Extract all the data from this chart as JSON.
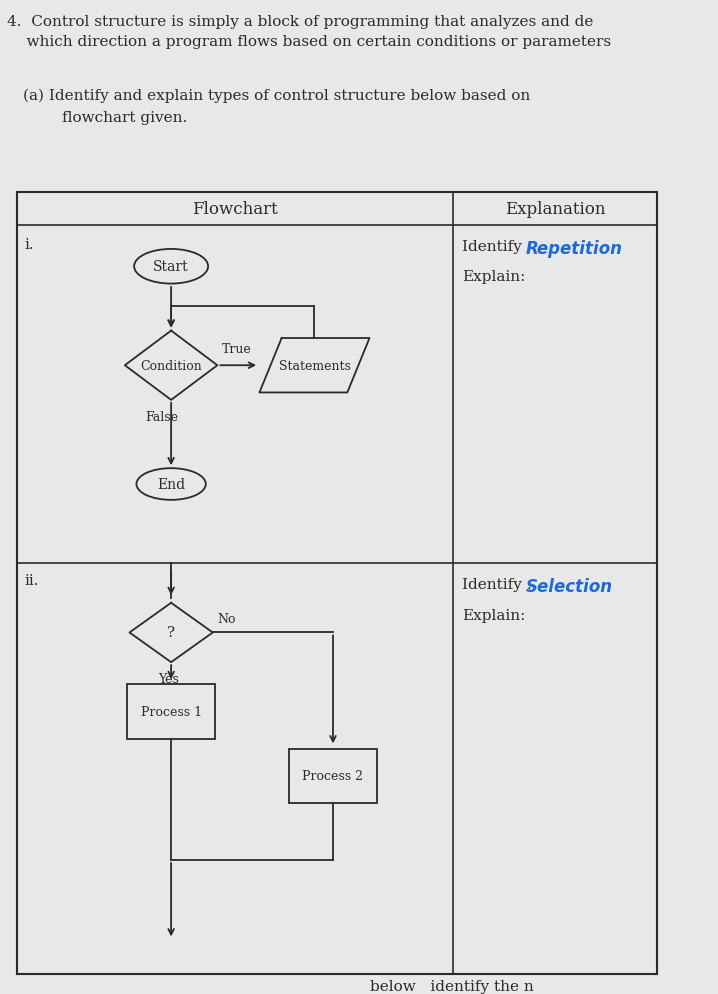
{
  "bg_color": "#e8e8e8",
  "header_text": "4.  Control structure is simply a block of programming that analyzes and de\n    which direction a program flows based on certain conditions or parameters",
  "sub_header": "(a) Identify and explain types of control structure below based on\n        flowchart given.",
  "col1_header": "Flowchart",
  "col2_header": "Explanation",
  "row1_label": "i.",
  "row2_label": "ii.",
  "identify1_prefix": "Identify : ",
  "identify1_handwritten": "Repetition",
  "explain1": "Explain:",
  "identify2_prefix": "Identify : ",
  "identify2_handwritten": "Selection",
  "explain2": "Explain:",
  "fc1_start": "Start",
  "fc1_condition": "Condition",
  "fc1_true": "True",
  "fc1_false": "False",
  "fc1_statements": "Statements",
  "fc1_end": "End",
  "fc2_condition": "?",
  "fc2_yes": "Yes",
  "fc2_no": "No",
  "fc2_process1": "Process 1",
  "fc2_process2": "Process 2",
  "footer_text": "below   identify the n",
  "handwritten_color": "#1a6bd6",
  "text_color": "#2a2a2a",
  "line_color": "#2a2a2a",
  "table_bg": "#e8e8e8",
  "cell_border": "#444444"
}
